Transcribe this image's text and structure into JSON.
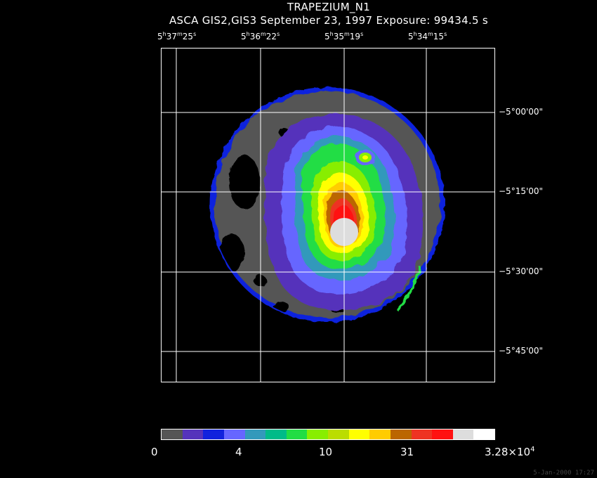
{
  "header": {
    "title": "TRAPEZIUM_N1",
    "subtitle": "ASCA GIS2,GIS3 September 23, 1997 Exposure: 99434.5 s"
  },
  "ra_axis": [
    {
      "h": "5",
      "m": "37",
      "s": "25"
    },
    {
      "h": "5",
      "m": "36",
      "s": "22"
    },
    {
      "h": "5",
      "m": "35",
      "s": "19"
    },
    {
      "h": "5",
      "m": "34",
      "s": "15"
    }
  ],
  "dec_axis": [
    "−5°00'00\"",
    "−5°15'00\"",
    "−5°30'00\"",
    "−5°45'00\""
  ],
  "colorbar": {
    "colors": [
      "#555555",
      "#5533bb",
      "#1122dd",
      "#6666ff",
      "#3399bb",
      "#00bb88",
      "#22dd44",
      "#88ee00",
      "#bbdd00",
      "#ffff00",
      "#ffcc00",
      "#bb6600",
      "#ee3322",
      "#ff1111",
      "#dddddd",
      "#ffffff"
    ],
    "ticks": {
      "t0": "0",
      "t1": "4",
      "t2": "10",
      "t3": "31",
      "t4_mantissa": "3.28×10",
      "t4_exp": "4"
    }
  },
  "timestamp": "5-Jan-2000 17:27"
}
